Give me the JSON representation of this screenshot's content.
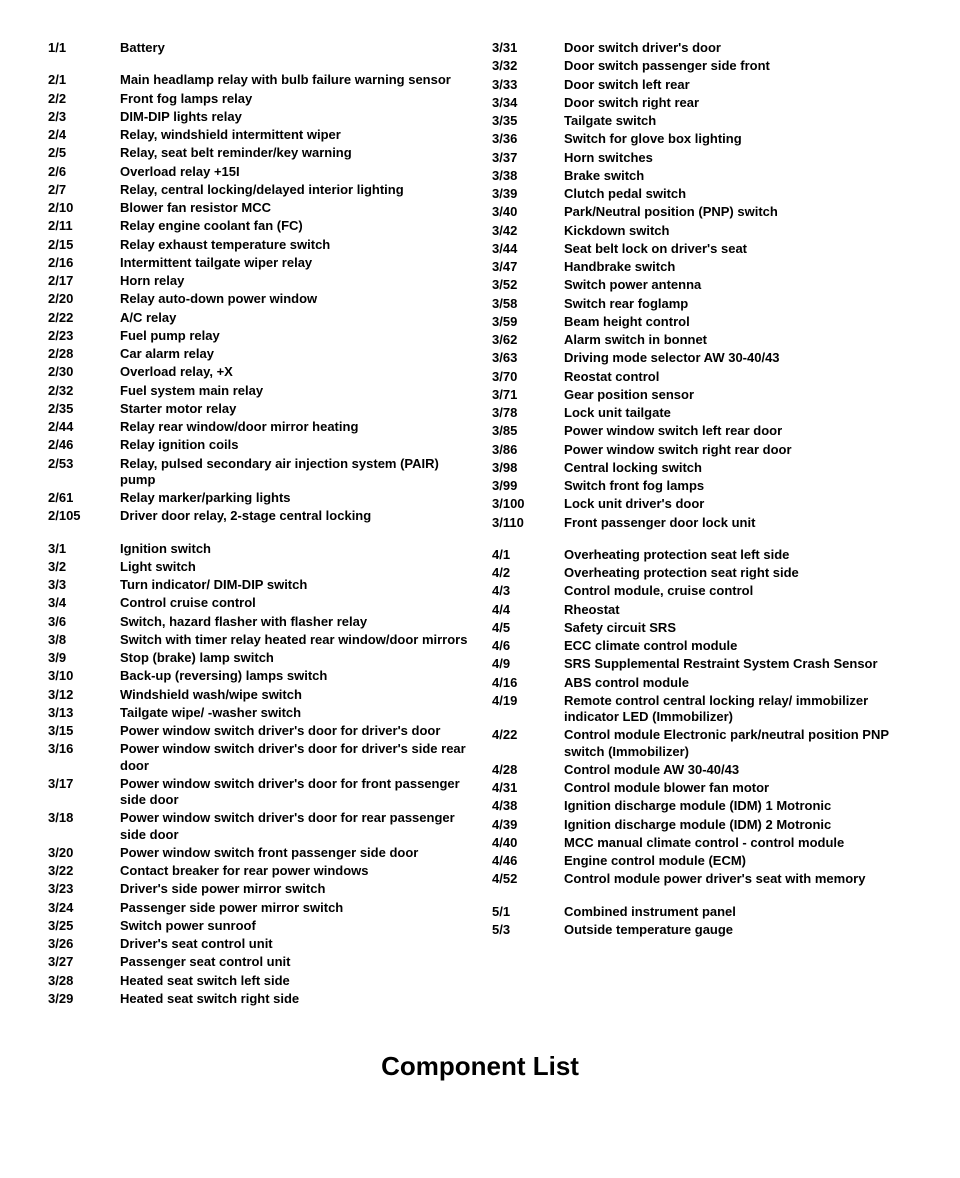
{
  "title": "Component List",
  "left_groups": [
    [
      {
        "code": "1/1",
        "desc": "Battery"
      }
    ],
    [
      {
        "code": "2/1",
        "desc": "Main headlamp relay with bulb failure warning sensor"
      },
      {
        "code": "2/2",
        "desc": "Front fog lamps relay"
      },
      {
        "code": "2/3",
        "desc": "DIM-DIP lights relay"
      },
      {
        "code": "2/4",
        "desc": "Relay, windshield intermittent wiper"
      },
      {
        "code": "2/5",
        "desc": "Relay, seat belt reminder/key warning"
      },
      {
        "code": "2/6",
        "desc": "Overload relay +15I"
      },
      {
        "code": "2/7",
        "desc": "Relay, central locking/delayed interior lighting"
      },
      {
        "code": "2/10",
        "desc": "Blower fan resistor MCC"
      },
      {
        "code": "2/11",
        "desc": "Relay engine coolant fan (FC)"
      },
      {
        "code": "2/15",
        "desc": "Relay exhaust temperature switch"
      },
      {
        "code": "2/16",
        "desc": "Intermittent tailgate wiper relay"
      },
      {
        "code": "2/17",
        "desc": "Horn relay"
      },
      {
        "code": "2/20",
        "desc": "Relay auto-down power window"
      },
      {
        "code": "2/22",
        "desc": "A/C relay"
      },
      {
        "code": "2/23",
        "desc": "Fuel pump relay"
      },
      {
        "code": "2/28",
        "desc": "Car alarm relay"
      },
      {
        "code": "2/30",
        "desc": "Overload relay, +X"
      },
      {
        "code": "2/32",
        "desc": "Fuel system main relay"
      },
      {
        "code": "2/35",
        "desc": "Starter motor relay"
      },
      {
        "code": "2/44",
        "desc": "Relay rear window/door mirror heating"
      },
      {
        "code": "2/46",
        "desc": "Relay ignition coils"
      },
      {
        "code": "2/53",
        "desc": "Relay, pulsed secondary air injection system (PAIR) pump"
      },
      {
        "code": "2/61",
        "desc": "Relay marker/parking lights"
      },
      {
        "code": "2/105",
        "desc": "Driver door relay, 2-stage central locking"
      }
    ],
    [
      {
        "code": "3/1",
        "desc": "Ignition switch"
      },
      {
        "code": "3/2",
        "desc": "Light switch"
      },
      {
        "code": "3/3",
        "desc": "Turn indicator/ DIM-DIP switch"
      },
      {
        "code": "3/4",
        "desc": "Control cruise control"
      },
      {
        "code": "3/6",
        "desc": "Switch, hazard flasher with flasher relay"
      },
      {
        "code": "3/8",
        "desc": "Switch with timer relay heated rear window/door mirrors"
      },
      {
        "code": "3/9",
        "desc": "Stop (brake) lamp switch"
      },
      {
        "code": "3/10",
        "desc": "Back-up (reversing) lamps switch"
      },
      {
        "code": "3/12",
        "desc": "Windshield wash/wipe switch"
      },
      {
        "code": "3/13",
        "desc": "Tailgate wipe/ -washer switch"
      },
      {
        "code": "3/15",
        "desc": "Power window switch driver's door for driver's door"
      },
      {
        "code": "3/16",
        "desc": "Power window switch driver's door for driver's side rear door"
      },
      {
        "code": "3/17",
        "desc": "Power window switch driver's door for front passenger side door"
      },
      {
        "code": "3/18",
        "desc": "Power window switch driver's door for rear passenger side door"
      },
      {
        "code": "3/20",
        "desc": "Power window switch front passenger side door"
      },
      {
        "code": "3/22",
        "desc": "Contact breaker for rear power windows"
      },
      {
        "code": "3/23",
        "desc": "Driver's side power mirror switch"
      },
      {
        "code": "3/24",
        "desc": "Passenger side power mirror switch"
      },
      {
        "code": "3/25",
        "desc": "Switch power sunroof"
      },
      {
        "code": "3/26",
        "desc": "Driver's seat control unit"
      },
      {
        "code": "3/27",
        "desc": "Passenger seat control unit"
      },
      {
        "code": "3/28",
        "desc": "Heated seat switch left side"
      },
      {
        "code": "3/29",
        "desc": "Heated seat switch right side"
      }
    ]
  ],
  "right_groups": [
    [
      {
        "code": "3/31",
        "desc": "Door switch driver's door"
      },
      {
        "code": "3/32",
        "desc": "Door switch passenger side front"
      },
      {
        "code": "3/33",
        "desc": "Door switch left rear"
      },
      {
        "code": "3/34",
        "desc": "Door switch right rear"
      },
      {
        "code": "3/35",
        "desc": "Tailgate switch"
      },
      {
        "code": "3/36",
        "desc": "Switch for glove box lighting"
      },
      {
        "code": "3/37",
        "desc": "Horn switches"
      },
      {
        "code": "3/38",
        "desc": "Brake switch"
      },
      {
        "code": "3/39",
        "desc": "Clutch pedal switch"
      },
      {
        "code": "3/40",
        "desc": "Park/Neutral position (PNP) switch"
      },
      {
        "code": "3/42",
        "desc": "Kickdown switch"
      },
      {
        "code": "3/44",
        "desc": "Seat belt lock on driver's seat"
      },
      {
        "code": "3/47",
        "desc": "Handbrake switch"
      },
      {
        "code": "3/52",
        "desc": "Switch power antenna"
      },
      {
        "code": "3/58",
        "desc": "Switch rear foglamp"
      },
      {
        "code": "3/59",
        "desc": "Beam height control"
      },
      {
        "code": "3/62",
        "desc": "Alarm switch in bonnet"
      },
      {
        "code": "3/63",
        "desc": "Driving mode selector AW 30-40/43"
      },
      {
        "code": "3/70",
        "desc": "Reostat control"
      },
      {
        "code": "3/71",
        "desc": "Gear position sensor"
      },
      {
        "code": "3/78",
        "desc": "Lock unit tailgate"
      },
      {
        "code": "3/85",
        "desc": "Power window switch left rear door"
      },
      {
        "code": "3/86",
        "desc": "Power window switch right rear door"
      },
      {
        "code": "3/98",
        "desc": "Central locking switch"
      },
      {
        "code": "3/99",
        "desc": "Switch front fog lamps"
      },
      {
        "code": "3/100",
        "desc": "Lock unit driver's door"
      },
      {
        "code": "3/110",
        "desc": "Front passenger door lock unit"
      }
    ],
    [
      {
        "code": "4/1",
        "desc": "Overheating protection seat left side"
      },
      {
        "code": "4/2",
        "desc": "Overheating protection seat right side"
      },
      {
        "code": "4/3",
        "desc": "Control module, cruise control"
      },
      {
        "code": "4/4",
        "desc": "Rheostat"
      },
      {
        "code": "4/5",
        "desc": "Safety circuit SRS"
      },
      {
        "code": "4/6",
        "desc": "ECC climate control module"
      },
      {
        "code": "4/9",
        "desc": "SRS Supplemental Restraint System Crash Sensor"
      },
      {
        "code": "4/16",
        "desc": "ABS control module"
      },
      {
        "code": "4/19",
        "desc": "Remote control central locking relay/ immobilizer indicator LED (Immobilizer)"
      },
      {
        "code": "4/22",
        "desc": "Control module Electronic park/neutral position PNP switch (Immobilizer)"
      },
      {
        "code": "4/28",
        "desc": "Control module AW 30-40/43"
      },
      {
        "code": "4/31",
        "desc": "Control module blower fan motor"
      },
      {
        "code": "4/38",
        "desc": "Ignition discharge module (IDM) 1 Motronic"
      },
      {
        "code": "4/39",
        "desc": "Ignition discharge module (IDM) 2 Motronic"
      },
      {
        "code": "4/40",
        "desc": "MCC manual climate control - control module"
      },
      {
        "code": "4/46",
        "desc": "Engine control module (ECM)"
      },
      {
        "code": "4/52",
        "desc": "Control module power driver's seat with memory"
      }
    ],
    [
      {
        "code": "5/1",
        "desc": "Combined instrument panel"
      },
      {
        "code": "5/3",
        "desc": "Outside temperature gauge"
      }
    ]
  ]
}
